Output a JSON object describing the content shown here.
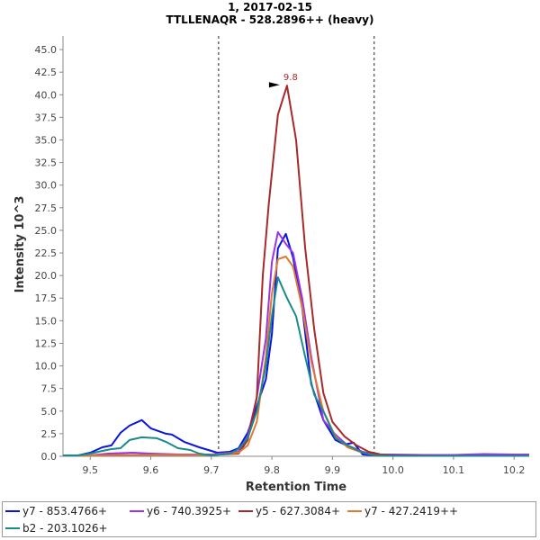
{
  "chart_data": {
    "type": "line",
    "title": "1, 2017-02-15",
    "subtitle": "TTLLENAQR - 528.2896++ (heavy)",
    "xlabel": "Retention Time",
    "ylabel": "Intensity 10^3",
    "xlim": [
      9.455,
      10.225
    ],
    "ylim": [
      0,
      46.5
    ],
    "x_ticks": [
      9.5,
      9.6,
      9.7,
      9.8,
      9.9,
      10.0,
      10.1,
      10.2
    ],
    "x_tick_labels": [
      "9.5",
      "9.6",
      "9.7",
      "9.8",
      "9.9",
      "10.0",
      "10.1",
      "10.2"
    ],
    "y_ticks": [
      0,
      2.5,
      5,
      7.5,
      10,
      12.5,
      15,
      17.5,
      20,
      22.5,
      25,
      27.5,
      30,
      32.5,
      35,
      37.5,
      40,
      42.5,
      45
    ],
    "y_tick_labels": [
      "0.0",
      "2.5",
      "5.0",
      "7.5",
      "10.0",
      "12.5",
      "15.0",
      "17.5",
      "20.0",
      "22.5",
      "25.0",
      "27.5",
      "30.0",
      "32.5",
      "35.0",
      "37.5",
      "40.0",
      "42.5",
      "45.0"
    ],
    "boundaries": [
      9.712,
      9.969
    ],
    "peak": {
      "x": 9.825,
      "y": 41.0,
      "label": "9.8"
    },
    "series": [
      {
        "name": "y7 - 853.4766+",
        "color": "#0b14e0",
        "points": [
          [
            9.455,
            0.1
          ],
          [
            9.48,
            0.1
          ],
          [
            9.5,
            0.4
          ],
          [
            9.52,
            1.0
          ],
          [
            9.535,
            1.2
          ],
          [
            9.55,
            2.6
          ],
          [
            9.565,
            3.4
          ],
          [
            9.585,
            4.0
          ],
          [
            9.6,
            3.1
          ],
          [
            9.625,
            2.5
          ],
          [
            9.635,
            2.4
          ],
          [
            9.655,
            1.6
          ],
          [
            9.68,
            1.0
          ],
          [
            9.71,
            0.4
          ],
          [
            9.73,
            0.5
          ],
          [
            9.745,
            0.9
          ],
          [
            9.76,
            2.6
          ],
          [
            9.775,
            5.5
          ],
          [
            9.79,
            8.5
          ],
          [
            9.8,
            13.5
          ],
          [
            9.81,
            23.0
          ],
          [
            9.823,
            24.6
          ],
          [
            9.835,
            22.0
          ],
          [
            9.85,
            16.5
          ],
          [
            9.865,
            8.0
          ],
          [
            9.885,
            4.0
          ],
          [
            9.905,
            1.8
          ],
          [
            9.92,
            1.3
          ],
          [
            9.935,
            1.5
          ],
          [
            9.95,
            0.2
          ],
          [
            9.97,
            0.1
          ],
          [
            10.0,
            0.05
          ],
          [
            10.1,
            0.05
          ],
          [
            10.225,
            0.05
          ]
        ]
      },
      {
        "name": "y6 - 740.3925+",
        "color": "#9933e8",
        "points": [
          [
            9.455,
            0.1
          ],
          [
            9.5,
            0.1
          ],
          [
            9.53,
            0.3
          ],
          [
            9.57,
            0.4
          ],
          [
            9.6,
            0.3
          ],
          [
            9.65,
            0.2
          ],
          [
            9.7,
            0.2
          ],
          [
            9.745,
            0.5
          ],
          [
            9.76,
            2.2
          ],
          [
            9.775,
            6.5
          ],
          [
            9.79,
            13.0
          ],
          [
            9.8,
            21.5
          ],
          [
            9.81,
            24.8
          ],
          [
            9.823,
            23.5
          ],
          [
            9.835,
            22.5
          ],
          [
            9.85,
            17.5
          ],
          [
            9.865,
            11.0
          ],
          [
            9.885,
            4.0
          ],
          [
            9.905,
            2.4
          ],
          [
            9.925,
            1.2
          ],
          [
            9.95,
            0.5
          ],
          [
            9.97,
            0.2
          ],
          [
            10.0,
            0.2
          ],
          [
            10.05,
            0.15
          ],
          [
            10.1,
            0.15
          ],
          [
            10.15,
            0.25
          ],
          [
            10.2,
            0.2
          ],
          [
            10.225,
            0.2
          ]
        ]
      },
      {
        "name": "y5 - 627.3084+",
        "color": "#a52a2a",
        "points": [
          [
            9.455,
            0.1
          ],
          [
            9.5,
            0.1
          ],
          [
            9.6,
            0.15
          ],
          [
            9.7,
            0.15
          ],
          [
            9.745,
            0.3
          ],
          [
            9.76,
            1.8
          ],
          [
            9.775,
            6.5
          ],
          [
            9.785,
            20.0
          ],
          [
            9.795,
            28.0
          ],
          [
            9.81,
            37.8
          ],
          [
            9.825,
            41.0
          ],
          [
            9.84,
            35.0
          ],
          [
            9.855,
            23.0
          ],
          [
            9.87,
            14.0
          ],
          [
            9.885,
            7.0
          ],
          [
            9.9,
            3.8
          ],
          [
            9.92,
            2.2
          ],
          [
            9.94,
            1.2
          ],
          [
            9.96,
            0.5
          ],
          [
            9.98,
            0.2
          ],
          [
            10.0,
            0.1
          ],
          [
            10.1,
            0.05
          ],
          [
            10.225,
            0.05
          ]
        ]
      },
      {
        "name": "y7 - 427.2419++",
        "color": "#e07a30",
        "points": [
          [
            9.455,
            0.1
          ],
          [
            9.5,
            0.1
          ],
          [
            9.6,
            0.15
          ],
          [
            9.7,
            0.15
          ],
          [
            9.745,
            0.4
          ],
          [
            9.76,
            1.2
          ],
          [
            9.775,
            3.8
          ],
          [
            9.79,
            11.0
          ],
          [
            9.8,
            18.0
          ],
          [
            9.81,
            21.8
          ],
          [
            9.823,
            22.1
          ],
          [
            9.835,
            21.0
          ],
          [
            9.85,
            16.5
          ],
          [
            9.865,
            10.5
          ],
          [
            9.885,
            5.0
          ],
          [
            9.905,
            2.2
          ],
          [
            9.925,
            1.0
          ],
          [
            9.95,
            0.4
          ],
          [
            9.97,
            0.1
          ],
          [
            10.0,
            0.05
          ],
          [
            10.225,
            0.05
          ]
        ]
      },
      {
        "name": "b2 - 203.1026+",
        "color": "#1a8a8a",
        "points": [
          [
            9.455,
            0.1
          ],
          [
            9.48,
            0.1
          ],
          [
            9.5,
            0.3
          ],
          [
            9.52,
            0.6
          ],
          [
            9.535,
            0.8
          ],
          [
            9.55,
            0.9
          ],
          [
            9.565,
            1.8
          ],
          [
            9.585,
            2.1
          ],
          [
            9.61,
            2.0
          ],
          [
            9.625,
            1.6
          ],
          [
            9.645,
            0.9
          ],
          [
            9.665,
            0.7
          ],
          [
            9.68,
            0.3
          ],
          [
            9.7,
            0.1
          ],
          [
            9.73,
            0.3
          ],
          [
            9.745,
            0.8
          ],
          [
            9.76,
            2.0
          ],
          [
            9.775,
            5.0
          ],
          [
            9.79,
            10.0
          ],
          [
            9.8,
            15.5
          ],
          [
            9.81,
            19.8
          ],
          [
            9.825,
            17.5
          ],
          [
            9.84,
            15.5
          ],
          [
            9.855,
            11.0
          ],
          [
            9.87,
            6.8
          ],
          [
            9.885,
            5.0
          ],
          [
            9.905,
            2.0
          ],
          [
            9.925,
            1.2
          ],
          [
            9.95,
            0.4
          ],
          [
            9.97,
            0.1
          ],
          [
            10.0,
            0.05
          ],
          [
            10.225,
            0.05
          ]
        ]
      }
    ]
  }
}
